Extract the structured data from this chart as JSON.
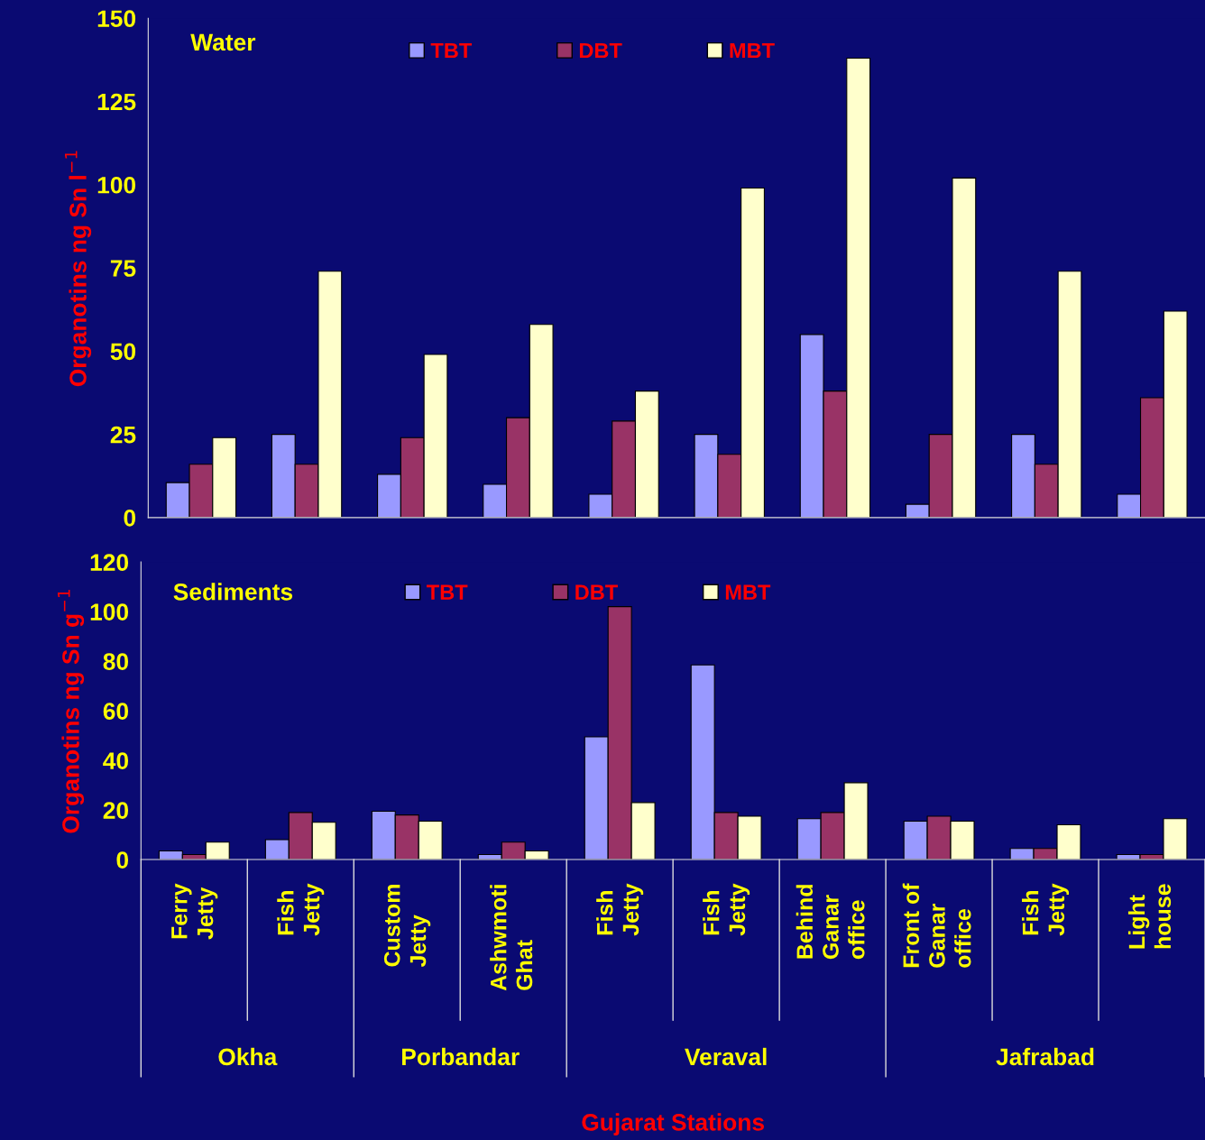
{
  "chart_data": [
    {
      "type": "bar",
      "title": "Water",
      "ylabel": "Organotins ng Sn l$^{−1}$",
      "series": [
        {
          "name": "TBT",
          "color": "#9999ff",
          "values": [
            10.5,
            25,
            13,
            10,
            7,
            25,
            55,
            4,
            25,
            7
          ]
        },
        {
          "name": "DBT",
          "color": "#993366",
          "values": [
            16,
            16,
            24,
            30,
            29,
            19,
            38,
            25,
            16,
            36
          ]
        },
        {
          "name": "MBT",
          "color": "#ffffcc",
          "values": [
            24,
            74,
            49,
            58,
            38,
            99,
            138,
            102,
            74,
            62
          ]
        }
      ],
      "ylim": [
        0,
        150
      ],
      "yticks": [
        0,
        25,
        50,
        75,
        100,
        125,
        150
      ],
      "tick_labels": "y",
      "legend": "top",
      "grid": false
    },
    {
      "type": "bar",
      "title": "Sediments",
      "ylabel": "Organotins ng Sn g$^{−1}$",
      "xlabel": "Gujarat Stations",
      "categories": [
        "Ferry\nJetty",
        "Fish\nJetty",
        "Custom\nJetty",
        "Ashwmoti\nGhat",
        "Fish\nJetty",
        "Fish\nJetty",
        "Behind\nGanar\noffice",
        "Front of\nGanar\noffice",
        "Fish\nJetty",
        "Light\nhouse"
      ],
      "series": [
        {
          "name": "TBT",
          "color": "#9999ff",
          "values": [
            3.5,
            8,
            19.5,
            2,
            49.5,
            78.5,
            16.5,
            15.5,
            4.5,
            2
          ]
        },
        {
          "name": "DBT",
          "color": "#993366",
          "values": [
            2,
            19,
            18,
            7,
            102,
            19,
            19,
            17.5,
            4.5,
            2
          ]
        },
        {
          "name": "MBT",
          "color": "#ffffcc",
          "values": [
            7,
            15,
            15.5,
            3.5,
            23,
            17.5,
            31,
            15.5,
            14,
            16.5
          ]
        }
      ],
      "ylim": [
        0,
        120
      ],
      "yticks": [
        0,
        20,
        40,
        60,
        80,
        100,
        120
      ],
      "legend": "top",
      "grid": false,
      "annotations": [
        "Okha",
        "Porbandar",
        "Veraval",
        "Jafrabad"
      ]
    }
  ]
}
